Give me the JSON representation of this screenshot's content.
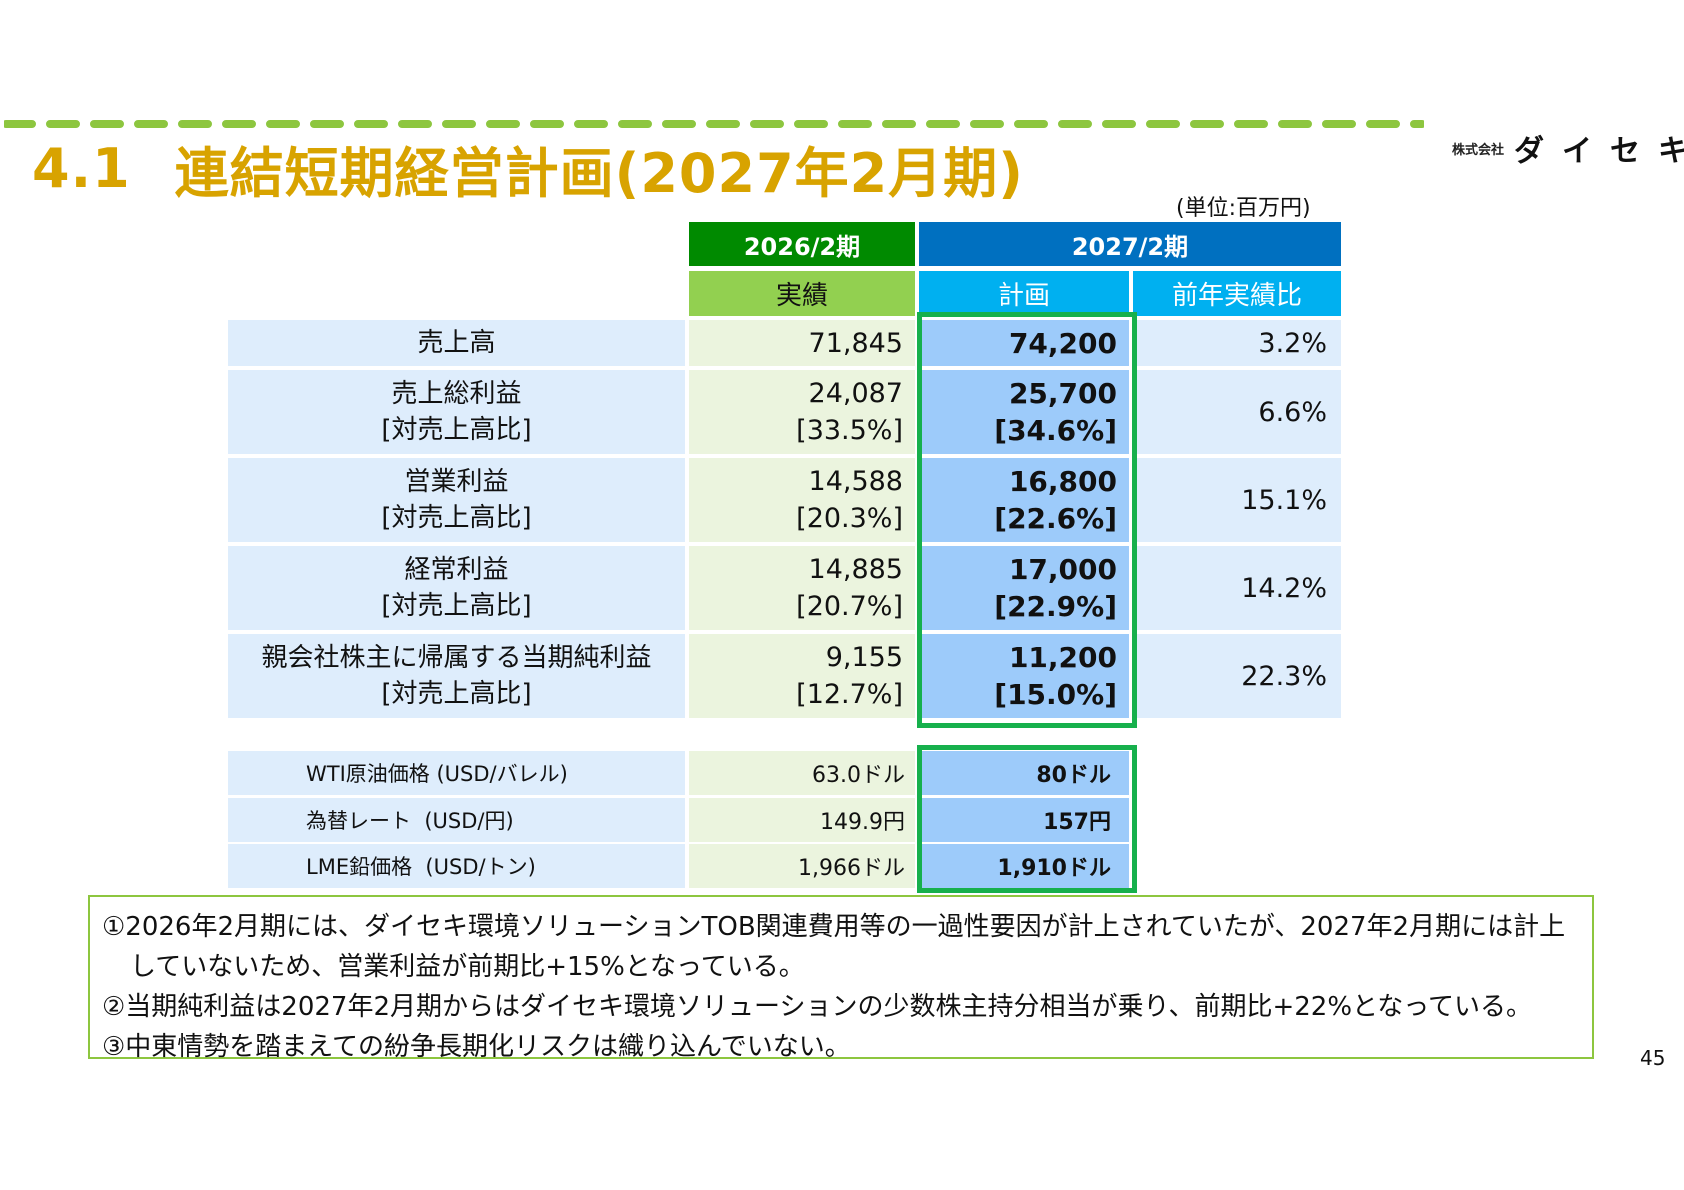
{
  "header": {
    "section_number": "4.1",
    "title": "連結短期経営計画(2027年2月期)",
    "logo_small": "株式会社",
    "logo_big": "ダイセキ",
    "unit": "(単位:百万円)"
  },
  "colors": {
    "title": "#d8a300",
    "dash": "#8dc63f",
    "header_2026": "#008a00",
    "sub_2026": "#92d050",
    "header_2027": "#0070c0",
    "sub_2027": "#00b0f0",
    "highlight_border": "#16b04c",
    "row_label_bg": "#deedfc",
    "col_2026_bg": "#ebf4de",
    "col_plan_bg": "#9dcbfa"
  },
  "table": {
    "col_2026": "2026/2期",
    "col_2026_sub": "実績",
    "col_2027": "2027/2期",
    "col_2027_sub_plan": "計画",
    "col_2027_sub_yoy": "前年実績比",
    "rows": [
      {
        "label": "売上高",
        "sublabel": "",
        "actual": "71,845",
        "actual_ratio": "",
        "plan": "74,200",
        "plan_ratio": "",
        "yoy": "3.2%"
      },
      {
        "label": "売上総利益",
        "sublabel": "[対売上高比]",
        "actual": "24,087",
        "actual_ratio": "[33.5%]",
        "plan": "25,700",
        "plan_ratio": "[34.6%]",
        "yoy": "6.6%"
      },
      {
        "label": "営業利益",
        "sublabel": "[対売上高比]",
        "actual": "14,588",
        "actual_ratio": "[20.3%]",
        "plan": "16,800",
        "plan_ratio": "[22.6%]",
        "yoy": "15.1%"
      },
      {
        "label": "経常利益",
        "sublabel": "[対売上高比]",
        "actual": "14,885",
        "actual_ratio": "[20.7%]",
        "plan": "17,000",
        "plan_ratio": "[22.9%]",
        "yoy": "14.2%"
      },
      {
        "label": "親会社株主に帰属する当期純利益",
        "sublabel": "[対売上高比]",
        "actual": "9,155",
        "actual_ratio": "[12.7%]",
        "plan": "11,200",
        "plan_ratio": "[15.0%]",
        "yoy": "22.3%"
      }
    ]
  },
  "assumptions": [
    {
      "label": "WTI原油価格 (USD/バレル)",
      "actual": "63.0ドル",
      "plan": "80ドル"
    },
    {
      "label": "為替レート  (USD/円)",
      "actual": "149.9円",
      "plan": "157円"
    },
    {
      "label": "LME鉛価格  (USD/トン)",
      "actual": "1,966ドル",
      "plan": "1,910ドル"
    }
  ],
  "notes": {
    "n1_line1": "①2026年2月期には、ダイセキ環境ソリューションTOB関連費用等の一過性要因が計上されていたが、2027年2月期には計上",
    "n1_line2": "していないため、営業利益が前期比+15%となっている。",
    "n2": "②当期純利益は2027年2月期からはダイセキ環境ソリューションの少数株主持分相当が乗り、前期比+22%となっている。",
    "n3": "③中東情勢を踏まえての紛争長期化リスクは織り込んでいない。"
  },
  "page_number": "45"
}
